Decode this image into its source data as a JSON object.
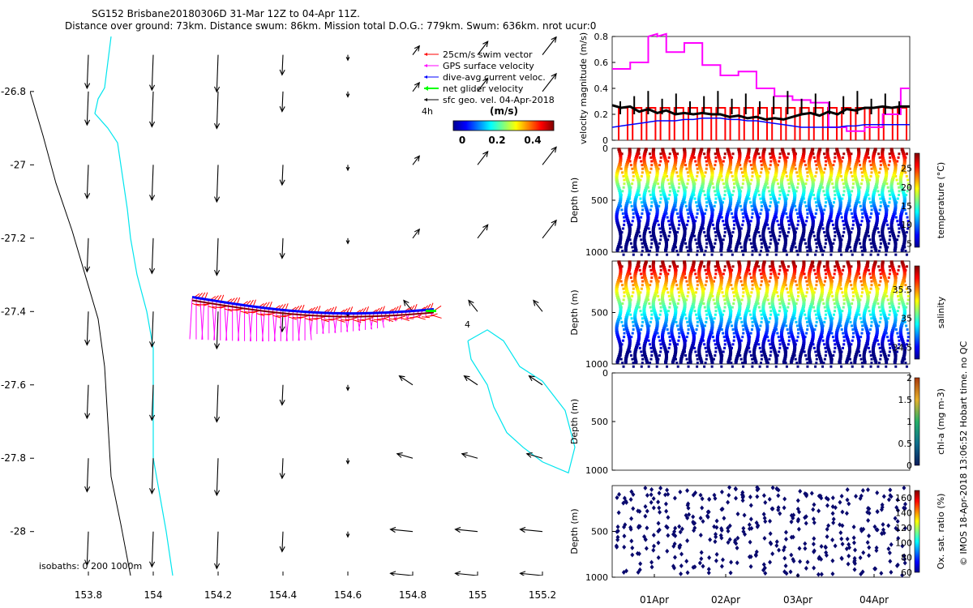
{
  "title": {
    "line1": "SG152 Brisbane20180306D 31-Mar 12Z to 04-Apr 11Z.",
    "line2": "Distance over ground: 73km. Distance swum: 86km. Mission total D.O.G.: 779km. Swum: 636km. nrot ucur:0"
  },
  "watermark": "© IMOS 18-Apr-2018 13:06:52 Hobart time. no QC",
  "colors": {
    "swim": "#ff0000",
    "gps": "#ff00ff",
    "current": "#0000ff",
    "net": "#00ff00",
    "geo": "#000000",
    "coast": "#00e5ee",
    "isobath": "#000000"
  },
  "map": {
    "xlim": [
      153.62,
      155.32
    ],
    "ylim": [
      -28.12,
      -26.65
    ],
    "xticks": [
      "153.8",
      "154",
      "154.2",
      "154.4",
      "154.6",
      "154.8",
      "155",
      "155.2"
    ],
    "yticks": [
      "-26.8",
      "-27",
      "-27.2",
      "-27.4",
      "-27.6",
      "-27.8",
      "-28"
    ],
    "legend": {
      "swim": "25cm/s swim vector",
      "gps": "GPS surface velocity",
      "current": "dive-avg current veloc.",
      "net": "net glider velocity",
      "geo": "sfc geo. vel. 04-Apr-2018"
    },
    "colorbar": {
      "title": "(m/s)",
      "ticks": [
        "0",
        "0.2",
        "0.4"
      ]
    },
    "label_4h": "4h",
    "label_4": "4",
    "isobaths": "isobaths: 0   200  1000m"
  },
  "chart_data": [
    {
      "type": "line",
      "title": "",
      "ylabel": "velocity magnitude (m/s)",
      "ylim": [
        0,
        0.8
      ],
      "yticks": [
        "0",
        "0.2",
        "0.4",
        "0.6",
        "0.8"
      ],
      "series": [
        {
          "name": "GPS surface velocity",
          "values": [
            0.55,
            0.55,
            0.6,
            0.6,
            0.82,
            0.82,
            0.68,
            0.68,
            0.75,
            0.75,
            0.58,
            0.58,
            0.5,
            0.5,
            0.53,
            0.53,
            0.4,
            0.4,
            0.34,
            0.34,
            0.31,
            0.31,
            0.29,
            0.29,
            0.1,
            0.1,
            0.07,
            0.07,
            0.1,
            0.1,
            0.2,
            0.2,
            0.4,
            0.4
          ]
        },
        {
          "name": "net glider velocity",
          "values": [
            0.27,
            0.25,
            0.26,
            0.22,
            0.24,
            0.21,
            0.23,
            0.2,
            0.21,
            0.2,
            0.21,
            0.2,
            0.2,
            0.18,
            0.19,
            0.17,
            0.18,
            0.16,
            0.17,
            0.16,
            0.18,
            0.2,
            0.21,
            0.19,
            0.22,
            0.2,
            0.24,
            0.23,
            0.25,
            0.25,
            0.26,
            0.25,
            0.26,
            0.26
          ]
        },
        {
          "name": "dive-avg current veloc.",
          "values": [
            0.1,
            0.11,
            0.12,
            0.13,
            0.14,
            0.15,
            0.15,
            0.15,
            0.16,
            0.16,
            0.17,
            0.17,
            0.17,
            0.16,
            0.16,
            0.15,
            0.15,
            0.14,
            0.13,
            0.12,
            0.11,
            0.1,
            0.1,
            0.1,
            0.1,
            0.1,
            0.11,
            0.11,
            0.12,
            0.12,
            0.12,
            0.12,
            0.12,
            0.12
          ]
        }
      ]
    },
    {
      "type": "scatter",
      "ylabel": "Depth (m)",
      "cbar_label": "temperature (°C)",
      "yticks": [
        "0",
        "500",
        "1000"
      ],
      "cticks": [
        "5",
        "10",
        "15",
        "20",
        "25"
      ],
      "clim": [
        4,
        29
      ]
    },
    {
      "type": "scatter",
      "ylabel": "Depth (m)",
      "cbar_label": "salinity",
      "yticks": [
        "500",
        "1000"
      ],
      "cticks": [
        "34.5",
        "35",
        "35.5"
      ],
      "clim": [
        34.3,
        35.9
      ]
    },
    {
      "type": "scatter",
      "ylabel": "Depth (m)",
      "cbar_label": "chl-a (mg m-3)",
      "yticks": [
        "0",
        "500",
        "1000"
      ],
      "cticks": [
        "0",
        "0.5",
        "1",
        "1.5",
        "2"
      ],
      "clim": [
        0,
        2
      ]
    },
    {
      "type": "scatter",
      "ylabel": "Depth (m)",
      "cbar_label": "Ox. sat. ratio (%)",
      "yticks": [
        "500",
        "1000"
      ],
      "cticks": [
        "60",
        "80",
        "100",
        "120",
        "140",
        "160"
      ],
      "clim": [
        60,
        170
      ]
    }
  ],
  "time_axis": {
    "ticks": [
      "01Apr",
      "02Apr",
      "03Apr",
      "04Apr"
    ]
  }
}
